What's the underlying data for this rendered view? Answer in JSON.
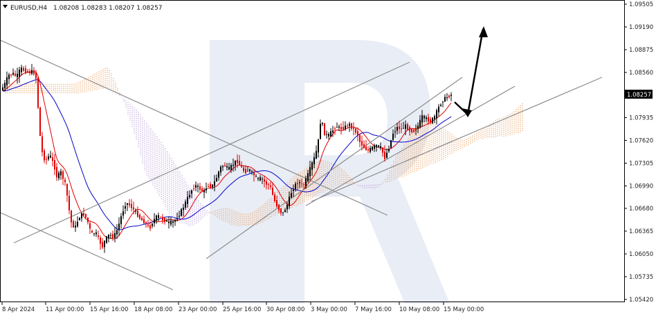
{
  "chart_data": {
    "type": "candlestick",
    "symbol": "EURUSD,H4",
    "ohlc": "1.08208 1.08283 1.08207 1.08257",
    "current_price_label": "1.08257",
    "y_ticks": [
      "1.09505",
      "1.09190",
      "1.08875",
      "1.08560",
      "1.08257",
      "1.07935",
      "1.07620",
      "1.07305",
      "1.06990",
      "1.06680",
      "1.06365",
      "1.06050",
      "1.05735",
      "1.05420"
    ],
    "x_ticks": [
      "8 Apr 2024",
      "11 Apr 00:00",
      "15 Apr 16:00",
      "18 Apr 08:00",
      "23 Apr 00:00",
      "25 Apr 16:00",
      "30 Apr 08:00",
      "3 May 00:00",
      "7 May 16:00",
      "10 May 08:00",
      "15 May 00:00"
    ],
    "ylim": [
      1.0542,
      1.09505
    ],
    "colors": {
      "bull": "#000000",
      "bear": "#e00000",
      "tenkan": "#e00000",
      "kijun": "#0000c8",
      "cloud_bull": "#e8a060",
      "cloud_bear": "#b9a0d8",
      "trendline": "#8c8c8c",
      "arrow": "#000000",
      "watermark": "#e6ebf5"
    }
  }
}
